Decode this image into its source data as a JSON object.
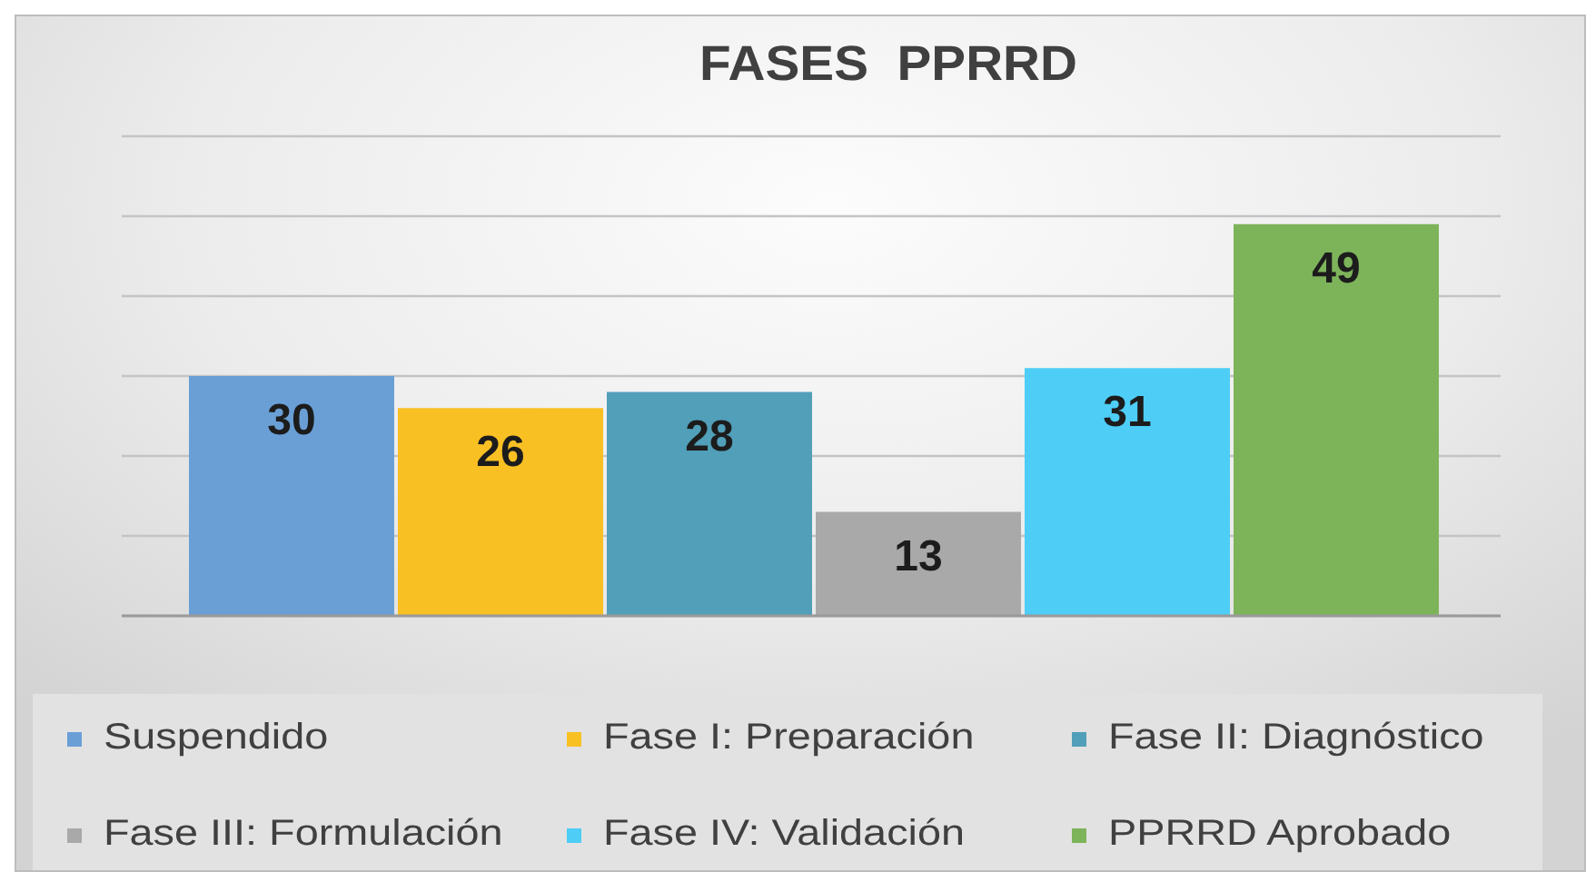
{
  "chart_data": {
    "type": "bar",
    "title": "FASES  PPRRD",
    "categories": [
      null
    ],
    "series": [
      {
        "name": "Suspendido",
        "color": "#6a9fd6",
        "values": [
          30
        ]
      },
      {
        "name": "Fase I: Preparación",
        "color": "#f9c024",
        "values": [
          26
        ]
      },
      {
        "name": "Fase II: Diagnóstico",
        "color": "#519fb9",
        "values": [
          28
        ]
      },
      {
        "name": "Fase III: Formulación",
        "color": "#a9a9a9",
        "values": [
          13
        ]
      },
      {
        "name": "Fase IV: Validación",
        "color": "#4ecdf6",
        "values": [
          31
        ]
      },
      {
        "name": "PPRRD Aprobado",
        "color": "#7db45a",
        "values": [
          49
        ]
      }
    ],
    "ylim": [
      0,
      60
    ],
    "yticks": [
      {
        "value": 0,
        "label": null
      },
      {
        "value": 10,
        "label": null
      },
      {
        "value": 20,
        "label": null
      },
      {
        "value": 30,
        "label": null
      },
      {
        "value": 40,
        "label": null
      },
      {
        "value": 50,
        "label": null
      },
      {
        "value": 60,
        "label": null
      }
    ],
    "grid": "y",
    "data_labels": true,
    "legend": "bottom"
  }
}
